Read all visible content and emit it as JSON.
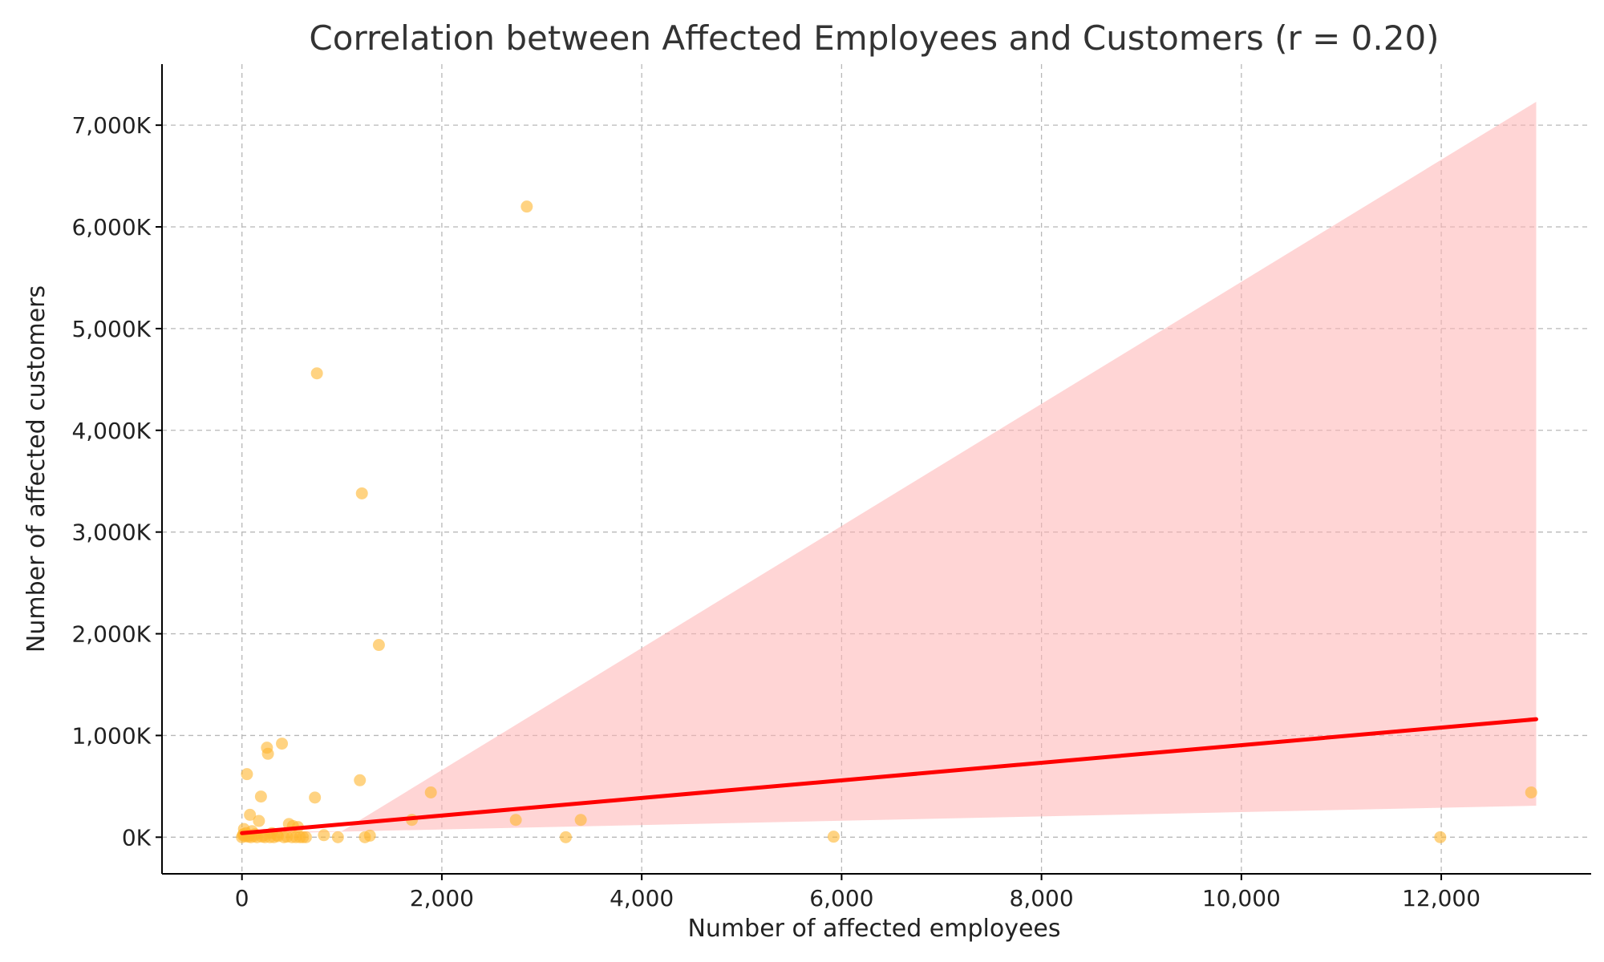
{
  "chart_data": {
    "type": "scatter",
    "title": "Correlation between Affected Employees and Customers (r = 0.20)",
    "xlabel": "Number of affected employees",
    "ylabel": "Number of affected customers",
    "xlim": [
      -800,
      13500
    ],
    "ylim": [
      -360000,
      7600000
    ],
    "x_ticks": [
      0,
      2000,
      4000,
      6000,
      8000,
      10000,
      12000
    ],
    "x_tick_labels": [
      "0",
      "2,000",
      "4,000",
      "6,000",
      "8,000",
      "10,000",
      "12,000"
    ],
    "y_ticks": [
      0,
      1000000,
      2000000,
      3000000,
      4000000,
      5000000,
      6000000,
      7000000
    ],
    "y_tick_labels": [
      "0K",
      "1,000K",
      "2,000K",
      "3,000K",
      "4,000K",
      "5,000K",
      "6,000K",
      "7,000K"
    ],
    "grid": true,
    "colors": {
      "points": "#ffb52e",
      "regression_line": "#ff0000",
      "confidence_band": "#ffb3b3"
    },
    "series": [
      {
        "values": [
          [
            2850,
            6200000
          ],
          [
            750,
            4560000
          ],
          [
            1200,
            3380000
          ],
          [
            1370,
            1890000
          ],
          [
            400,
            920000
          ],
          [
            250,
            880000
          ],
          [
            260,
            820000
          ],
          [
            50,
            620000
          ],
          [
            1180,
            560000
          ],
          [
            190,
            400000
          ],
          [
            730,
            390000
          ],
          [
            1890,
            440000
          ],
          [
            12900,
            440000
          ],
          [
            80,
            220000
          ],
          [
            170,
            160000
          ],
          [
            1700,
            170000
          ],
          [
            2740,
            170000
          ],
          [
            3390,
            170000
          ],
          [
            470,
            130000
          ],
          [
            510,
            110000
          ],
          [
            560,
            100000
          ],
          [
            20,
            80000
          ],
          [
            100,
            60000
          ],
          [
            300,
            40000
          ],
          [
            820,
            20000
          ],
          [
            1280,
            15000
          ],
          [
            5920,
            5000
          ],
          [
            11990,
            0
          ],
          [
            3240,
            0
          ],
          [
            960,
            0
          ],
          [
            1230,
            0
          ],
          [
            640,
            0
          ],
          [
            0,
            0
          ],
          [
            10,
            20000
          ],
          [
            30,
            10000
          ],
          [
            60,
            5000
          ],
          [
            90,
            0
          ],
          [
            120,
            10000
          ],
          [
            150,
            0
          ],
          [
            200,
            5000
          ],
          [
            230,
            0
          ],
          [
            280,
            0
          ],
          [
            320,
            0
          ],
          [
            360,
            10000
          ],
          [
            420,
            0
          ],
          [
            450,
            5000
          ],
          [
            500,
            0
          ],
          [
            540,
            0
          ],
          [
            580,
            0
          ],
          [
            610,
            0
          ],
          [
            40,
            40000
          ],
          [
            15,
            30000
          ],
          [
            70,
            20000
          ],
          [
            130,
            30000
          ],
          [
            220,
            20000
          ],
          [
            350,
            20000
          ]
        ]
      }
    ],
    "regression": {
      "x_range": [
        0,
        12950
      ],
      "y_at_start": 40000,
      "y_at_end": 1160000,
      "band_lower": [
        [
          0,
          30000
        ],
        [
          1000,
          55000
        ],
        [
          12950,
          310000
        ]
      ],
      "band_upper": [
        [
          0,
          50000
        ],
        [
          1000,
          60000
        ],
        [
          12950,
          7230000
        ]
      ]
    }
  }
}
